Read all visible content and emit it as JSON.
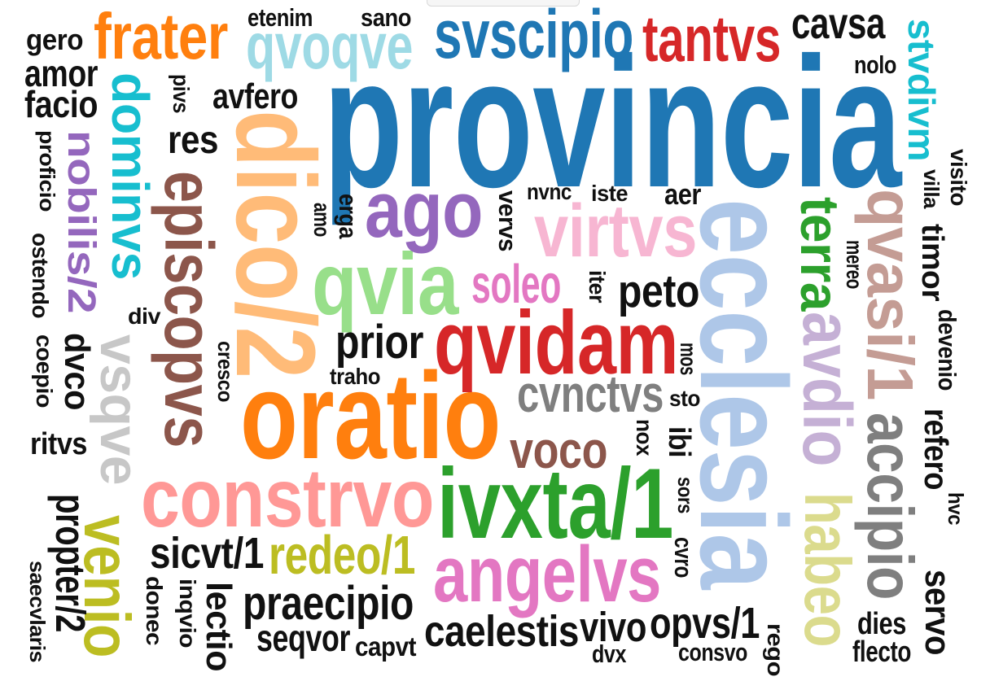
{
  "colors": {
    "black": "#111111",
    "blue": "#1f77b4",
    "orange": "#ff7f0e",
    "light_orange": "#ffbb78",
    "green": "#2ca02c",
    "light_green": "#98df8a",
    "red": "#d62728",
    "pink": "#ff9896",
    "purple": "#9467bd",
    "lavender": "#c5b0d5",
    "brown": "#8c564b",
    "tan": "#c49c94",
    "magenta": "#e377c2",
    "light_pink": "#f7b6d2",
    "gray": "#7f7f7f",
    "light_gray": "#c7c7c7",
    "olive": "#bcbd22",
    "light_olive": "#dbdb8d",
    "cyan": "#17becf",
    "light_cyan": "#9edae5",
    "light_blue": "#aec7e8"
  },
  "words": [
    {
      "text": "provincia",
      "color": "blue"
    },
    {
      "text": "ecclesia",
      "color": "light_blue"
    },
    {
      "text": "oratio",
      "color": "orange"
    },
    {
      "text": "ivxta/1",
      "color": "green"
    },
    {
      "text": "dico/2",
      "color": "light_orange"
    },
    {
      "text": "episcopvs",
      "color": "brown"
    },
    {
      "text": "qvidam",
      "color": "red"
    },
    {
      "text": "constrvo",
      "color": "pink"
    },
    {
      "text": "qvia",
      "color": "light_green"
    },
    {
      "text": "angelvs",
      "color": "magenta"
    },
    {
      "text": "svscipio",
      "color": "blue"
    },
    {
      "text": "tantvs",
      "color": "red"
    },
    {
      "text": "frater",
      "color": "orange"
    },
    {
      "text": "qvoqve",
      "color": "light_cyan"
    },
    {
      "text": "ago",
      "color": "purple"
    },
    {
      "text": "virtvs",
      "color": "light_pink"
    },
    {
      "text": "dominvs",
      "color": "cyan"
    },
    {
      "text": "nobilis/2",
      "color": "purple"
    },
    {
      "text": "vsqve",
      "color": "light_gray"
    },
    {
      "text": "avdio",
      "color": "lavender"
    },
    {
      "text": "qvasi/1",
      "color": "tan"
    },
    {
      "text": "accipio",
      "color": "gray"
    },
    {
      "text": "habeo",
      "color": "light_olive"
    },
    {
      "text": "terra",
      "color": "green"
    },
    {
      "text": "venio",
      "color": "olive"
    },
    {
      "text": "redeo/1",
      "color": "olive"
    },
    {
      "text": "cvnctvs",
      "color": "gray"
    },
    {
      "text": "soleo",
      "color": "magenta"
    },
    {
      "text": "voco",
      "color": "brown"
    },
    {
      "text": "stvdivm",
      "color": "cyan"
    },
    {
      "text": "cavsa",
      "color": "black"
    },
    {
      "text": "praecipio",
      "color": "black"
    },
    {
      "text": "prior",
      "color": "black"
    },
    {
      "text": "peto",
      "color": "black"
    },
    {
      "text": "sicvt/1",
      "color": "black"
    },
    {
      "text": "caelestis",
      "color": "black"
    },
    {
      "text": "opvs/1",
      "color": "black"
    },
    {
      "text": "vivo",
      "color": "black"
    },
    {
      "text": "propter/2",
      "color": "black"
    },
    {
      "text": "lectio",
      "color": "black"
    },
    {
      "text": "seqvor",
      "color": "black"
    },
    {
      "text": "servo",
      "color": "black"
    },
    {
      "text": "refero",
      "color": "black"
    },
    {
      "text": "timor",
      "color": "black"
    },
    {
      "text": "dvco",
      "color": "black"
    },
    {
      "text": "avfero",
      "color": "black"
    },
    {
      "text": "res",
      "color": "black"
    },
    {
      "text": "amor",
      "color": "black"
    },
    {
      "text": "facio",
      "color": "black"
    },
    {
      "text": "gero",
      "color": "black"
    },
    {
      "text": "etenim",
      "color": "black"
    },
    {
      "text": "sano",
      "color": "black"
    },
    {
      "text": "nolo",
      "color": "black"
    },
    {
      "text": "visito",
      "color": "black"
    },
    {
      "text": "villa",
      "color": "black"
    },
    {
      "text": "mereo",
      "color": "black"
    },
    {
      "text": "devenio",
      "color": "black"
    },
    {
      "text": "hvc",
      "color": "black"
    },
    {
      "text": "dies",
      "color": "black"
    },
    {
      "text": "flecto",
      "color": "black"
    },
    {
      "text": "rego",
      "color": "black"
    },
    {
      "text": "consvo",
      "color": "black"
    },
    {
      "text": "dvx",
      "color": "black"
    },
    {
      "text": "capvt",
      "color": "black"
    },
    {
      "text": "donec",
      "color": "black"
    },
    {
      "text": "inqvio",
      "color": "black"
    },
    {
      "text": "saecvlaris",
      "color": "black"
    },
    {
      "text": "ritvs",
      "color": "black"
    },
    {
      "text": "coepio",
      "color": "black"
    },
    {
      "text": "ostendo",
      "color": "black"
    },
    {
      "text": "proficio",
      "color": "black"
    },
    {
      "text": "div",
      "color": "black"
    },
    {
      "text": "cresco",
      "color": "black"
    },
    {
      "text": "traho",
      "color": "black"
    },
    {
      "text": "mos",
      "color": "black"
    },
    {
      "text": "sto",
      "color": "black"
    },
    {
      "text": "nox",
      "color": "black"
    },
    {
      "text": "ibi",
      "color": "black"
    },
    {
      "text": "sors",
      "color": "black"
    },
    {
      "text": "cvro",
      "color": "black"
    },
    {
      "text": "iter",
      "color": "black"
    },
    {
      "text": "nvnc",
      "color": "black"
    },
    {
      "text": "iste",
      "color": "black"
    },
    {
      "text": "aer",
      "color": "black"
    },
    {
      "text": "vervs",
      "color": "black"
    },
    {
      "text": "erga",
      "color": "black"
    },
    {
      "text": "amo",
      "color": "black"
    },
    {
      "text": "pivs",
      "color": "black"
    }
  ]
}
